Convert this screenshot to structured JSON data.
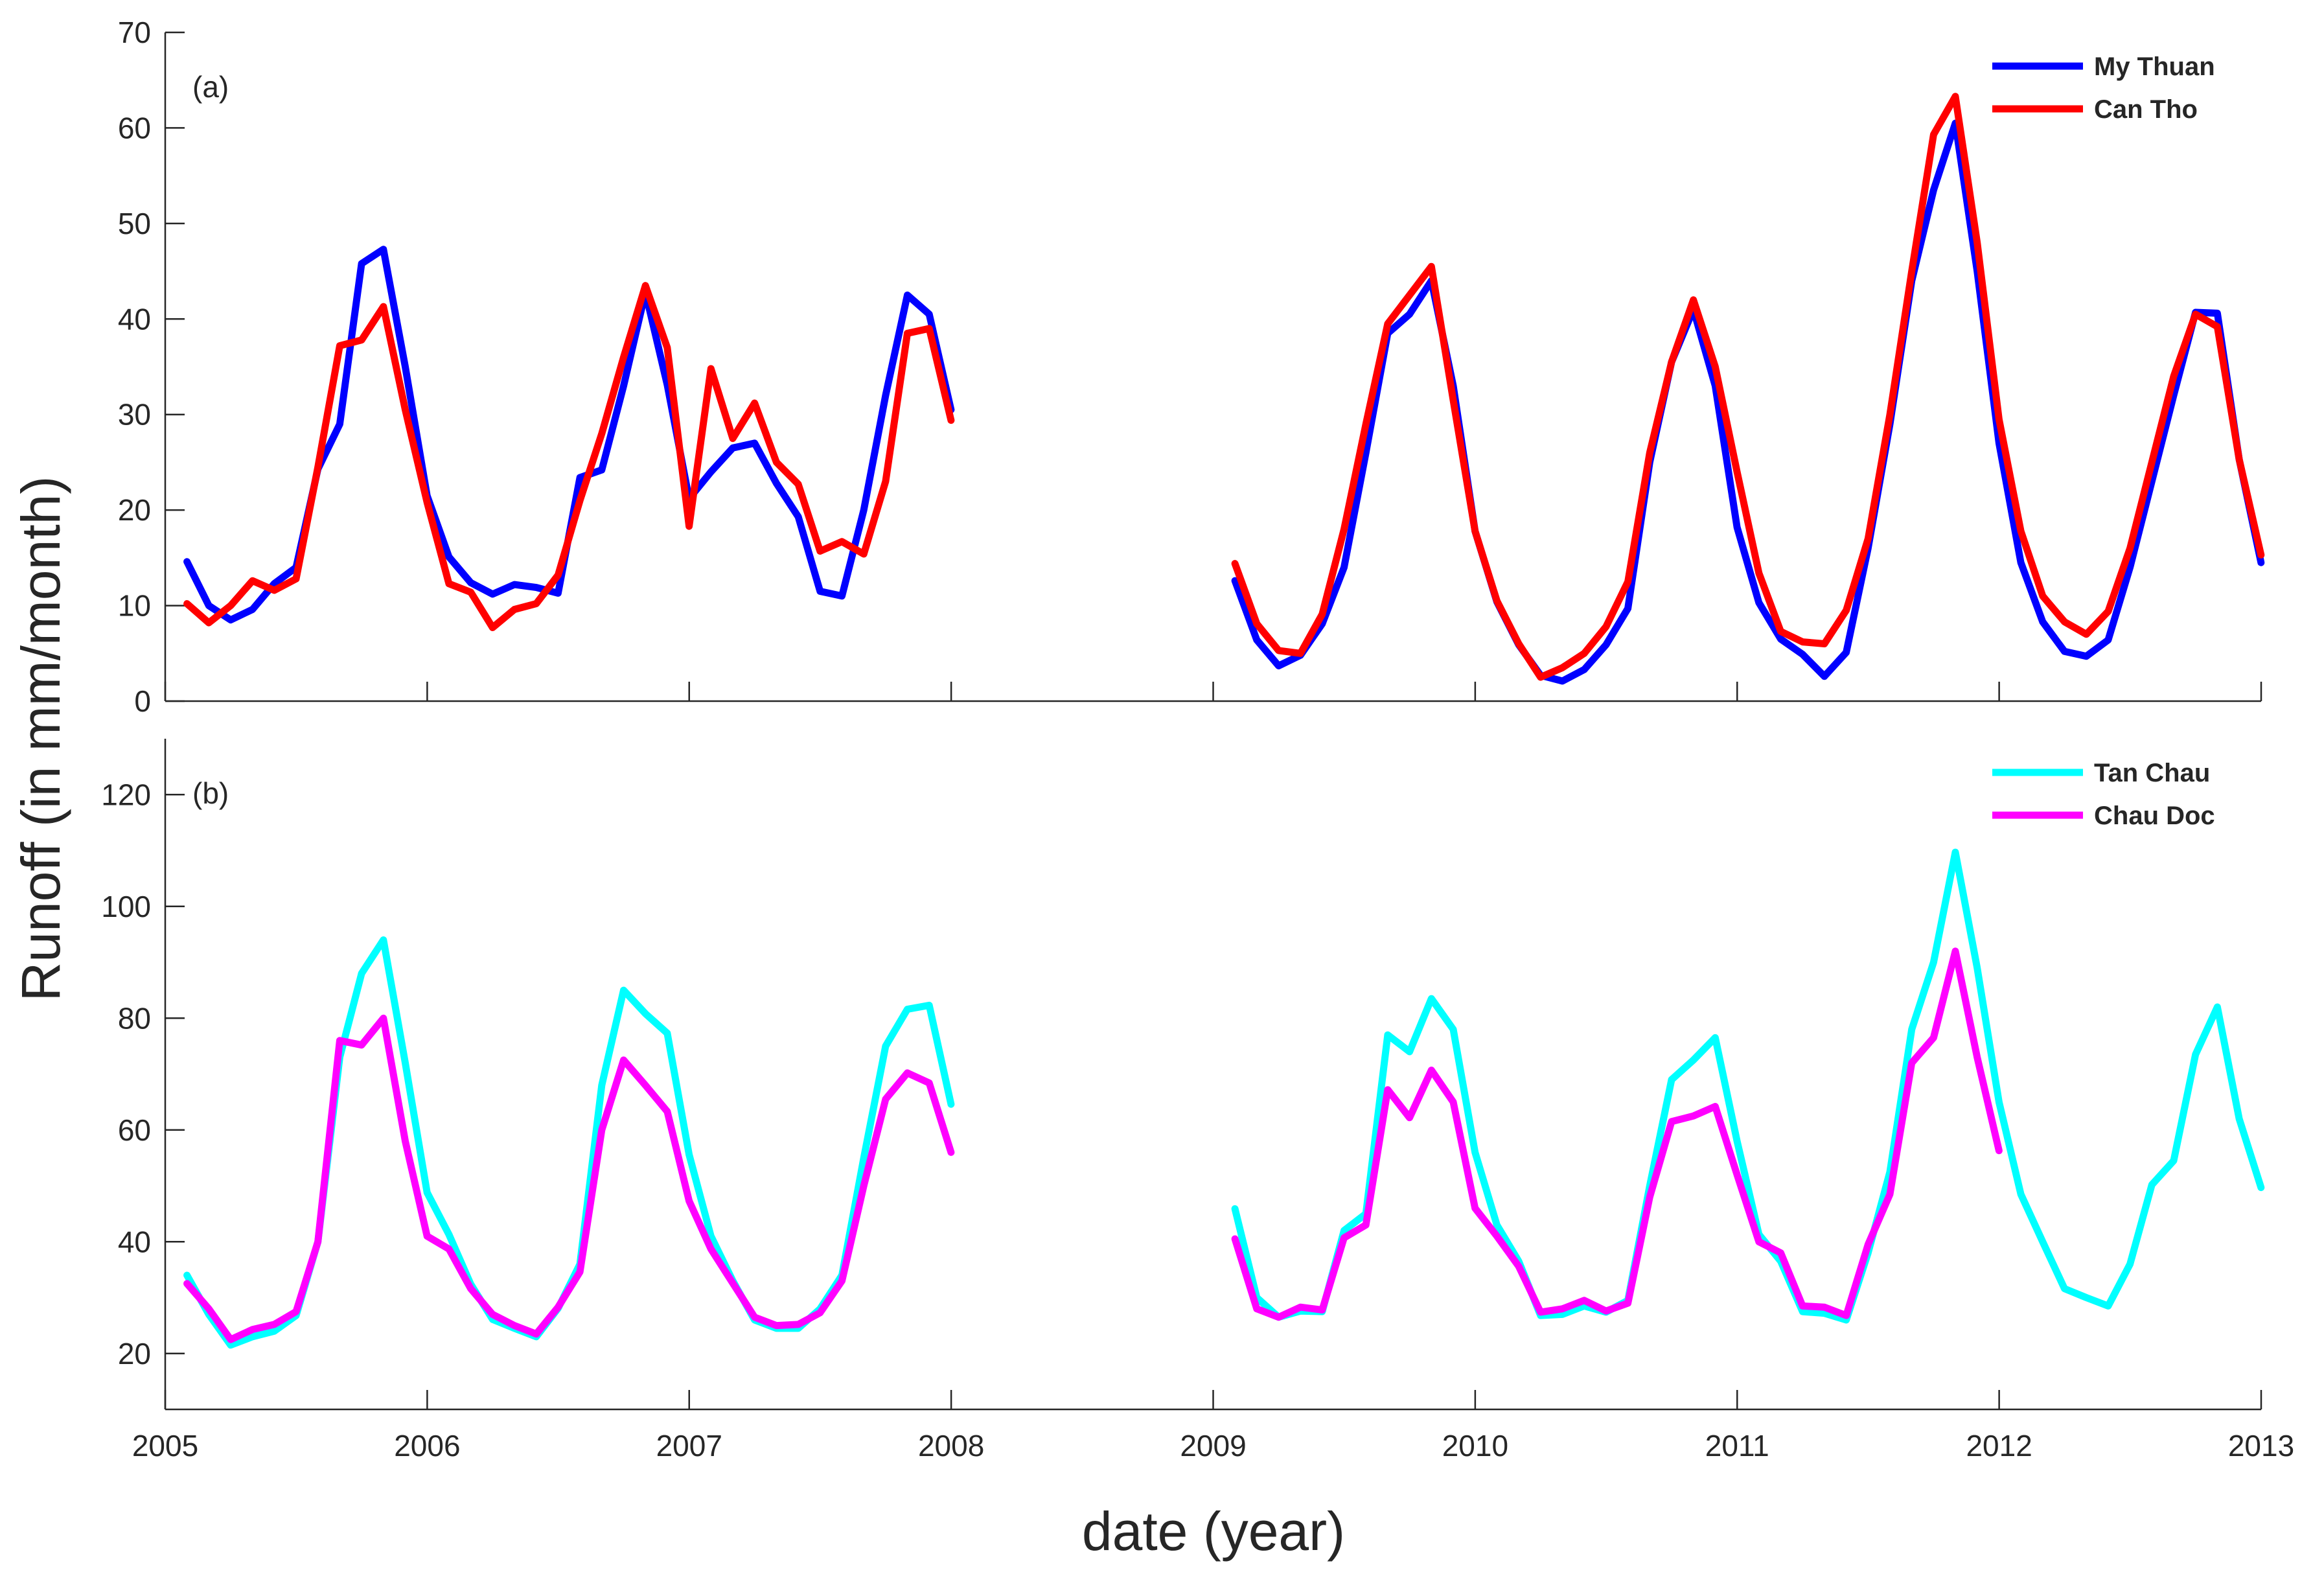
{
  "figure": {
    "xlabel": "date (year)",
    "ylabel": "Runoff (in mm/month)"
  },
  "chart_data": [
    {
      "type": "line",
      "panel_label": "(a)",
      "xlim": [
        2005,
        2013
      ],
      "ylim": [
        0,
        70
      ],
      "x_ticks": [
        2005,
        2006,
        2007,
        2008,
        2009,
        2010,
        2011,
        2012,
        2013
      ],
      "y_ticks": [
        0,
        10,
        20,
        30,
        40,
        50,
        60,
        70
      ],
      "legend_position": "top-right",
      "series": [
        {
          "name": "My Thuan",
          "color": "#0000ff",
          "segments": [
            {
              "start": 2005.083,
              "step": 0.08333,
              "values": [
                14.6,
                10.0,
                8.5,
                9.6,
                12.3,
                14.0,
                24.3,
                29.0,
                45.8,
                47.3,
                35.0,
                21.5,
                15.1,
                12.4,
                11.2,
                12.2,
                11.9,
                11.3,
                23.4,
                24.2,
                33.0,
                42.8,
                33.1,
                21.2,
                24.0,
                26.5,
                27.0,
                22.8,
                19.3,
                11.5,
                11.0,
                20.0,
                32.0,
                42.5,
                40.5,
                30.5
              ]
            },
            {
              "start": 2009.083,
              "step": 0.08333,
              "values": [
                12.6,
                6.4,
                3.7,
                4.8,
                8.1,
                14.0,
                26.0,
                38.5,
                40.5,
                44.0,
                33.0,
                17.8,
                10.4,
                5.9,
                2.7,
                2.1,
                3.3,
                5.9,
                9.7,
                25.0,
                35.5,
                41.0,
                33.0,
                18.2,
                10.3,
                6.5,
                4.9,
                2.6,
                5.1,
                16.0,
                29.0,
                44.0,
                53.5,
                60.5,
                45.0,
                27.0,
                14.5,
                8.3,
                5.2,
                4.7,
                6.4,
                14.0,
                23.0,
                32.0,
                40.7,
                40.6,
                25.3,
                14.5
              ]
            }
          ]
        },
        {
          "name": "Can Tho",
          "color": "#ff0000",
          "segments": [
            {
              "start": 2005.083,
              "step": 0.08333,
              "values": [
                10.2,
                8.2,
                10.0,
                12.6,
                11.6,
                12.8,
                24.5,
                37.2,
                37.8,
                41.3,
                30.5,
                20.8,
                12.3,
                11.4,
                7.7,
                9.6,
                10.2,
                13.2,
                21.0,
                28.0,
                36.0,
                43.5,
                37.0,
                18.3,
                34.8,
                27.5,
                31.2,
                25.0,
                22.7,
                15.7,
                16.7,
                15.4,
                23.0,
                38.5,
                39.0,
                29.4
              ]
            },
            {
              "start": 2009.083,
              "step": 0.08333,
              "values": [
                14.4,
                8.1,
                5.3,
                5.0,
                9.1,
                18.0,
                29.0,
                39.5,
                42.5,
                45.5,
                31.5,
                17.8,
                10.5,
                6.0,
                2.5,
                3.5,
                5.0,
                7.8,
                12.5,
                26.0,
                35.5,
                42.0,
                35.0,
                24.0,
                13.4,
                7.3,
                6.2,
                6.0,
                9.5,
                17.0,
                30.0,
                45.0,
                59.3,
                63.3,
                48.0,
                29.5,
                17.8,
                11.0,
                8.3,
                7.0,
                9.4,
                16.0,
                25.0,
                34.0,
                40.5,
                39.2,
                25.3,
                15.3
              ]
            }
          ]
        }
      ]
    },
    {
      "type": "line",
      "panel_label": "(b)",
      "xlim": [
        2005,
        2013
      ],
      "ylim": [
        10,
        130
      ],
      "x_ticks": [
        2005,
        2006,
        2007,
        2008,
        2009,
        2010,
        2011,
        2012,
        2013
      ],
      "x_tick_labels": [
        "2005",
        "2006",
        "2007",
        "2008",
        "2009",
        "2010",
        "2011",
        "2012",
        "2013"
      ],
      "y_ticks": [
        20,
        40,
        60,
        80,
        100,
        120
      ],
      "legend_position": "top-right",
      "series": [
        {
          "name": "Tan Chau",
          "color": "#00ffff",
          "segments": [
            {
              "start": 2005.083,
              "step": 0.08333,
              "values": [
                34.0,
                27.0,
                21.5,
                23.0,
                24.0,
                26.8,
                40.0,
                73.0,
                88.0,
                94.0,
                72.0,
                48.8,
                41.3,
                32.4,
                26.1,
                24.5,
                23.0,
                28.1,
                36.0,
                68.0,
                85.0,
                80.8,
                77.3,
                55.6,
                41.0,
                33.0,
                26.0,
                24.5,
                24.5,
                28.0,
                34.0,
                55.0,
                75.0,
                81.6,
                82.3,
                64.6
              ]
            },
            {
              "start": 2009.083,
              "step": 0.08333,
              "values": [
                45.9,
                30.0,
                26.5,
                27.6,
                27.5,
                42.0,
                45.0,
                77.0,
                74.0,
                83.5,
                78.0,
                56.0,
                43.0,
                36.5,
                26.8,
                27.0,
                28.5,
                27.4,
                29.5,
                50.0,
                69.0,
                72.5,
                76.5,
                58.0,
                41.3,
                36.5,
                27.5,
                27.2,
                26.0,
                38.0,
                52.5,
                78.0,
                90.0,
                109.7,
                89.0,
                65.0,
                48.5,
                40.0,
                31.6,
                30.0,
                28.5,
                36.0,
                50.2,
                54.5,
                73.5,
                82.0,
                62.0,
                49.7
              ]
            }
          ]
        },
        {
          "name": "Chau Doc",
          "color": "#ff00ff",
          "segments": [
            {
              "start": 2005.083,
              "step": 0.08333,
              "values": [
                32.5,
                28.0,
                22.5,
                24.3,
                25.2,
                27.5,
                40.0,
                76.0,
                75.2,
                80.0,
                58.0,
                41.0,
                38.7,
                31.6,
                27.0,
                25.0,
                23.5,
                28.3,
                34.6,
                60.0,
                72.5,
                68.0,
                63.3,
                47.3,
                38.7,
                32.6,
                26.5,
                25.0,
                25.2,
                27.3,
                33.0,
                50.0,
                65.5,
                70.2,
                68.4,
                56.0
              ]
            },
            {
              "start": 2009.083,
              "step": 0.08333,
              "values": [
                40.5,
                28.0,
                26.5,
                28.3,
                27.8,
                40.7,
                43.0,
                67.2,
                62.2,
                70.7,
                65.0,
                46.0,
                41.0,
                35.6,
                27.4,
                28.0,
                29.5,
                27.6,
                29.0,
                48.0,
                61.5,
                62.5,
                64.2,
                52.0,
                40.0,
                38.0,
                28.5,
                28.3,
                26.8,
                39.5,
                48.5,
                72.0,
                76.5,
                92.0,
                73.0,
                56.3
              ]
            }
          ]
        }
      ]
    }
  ]
}
